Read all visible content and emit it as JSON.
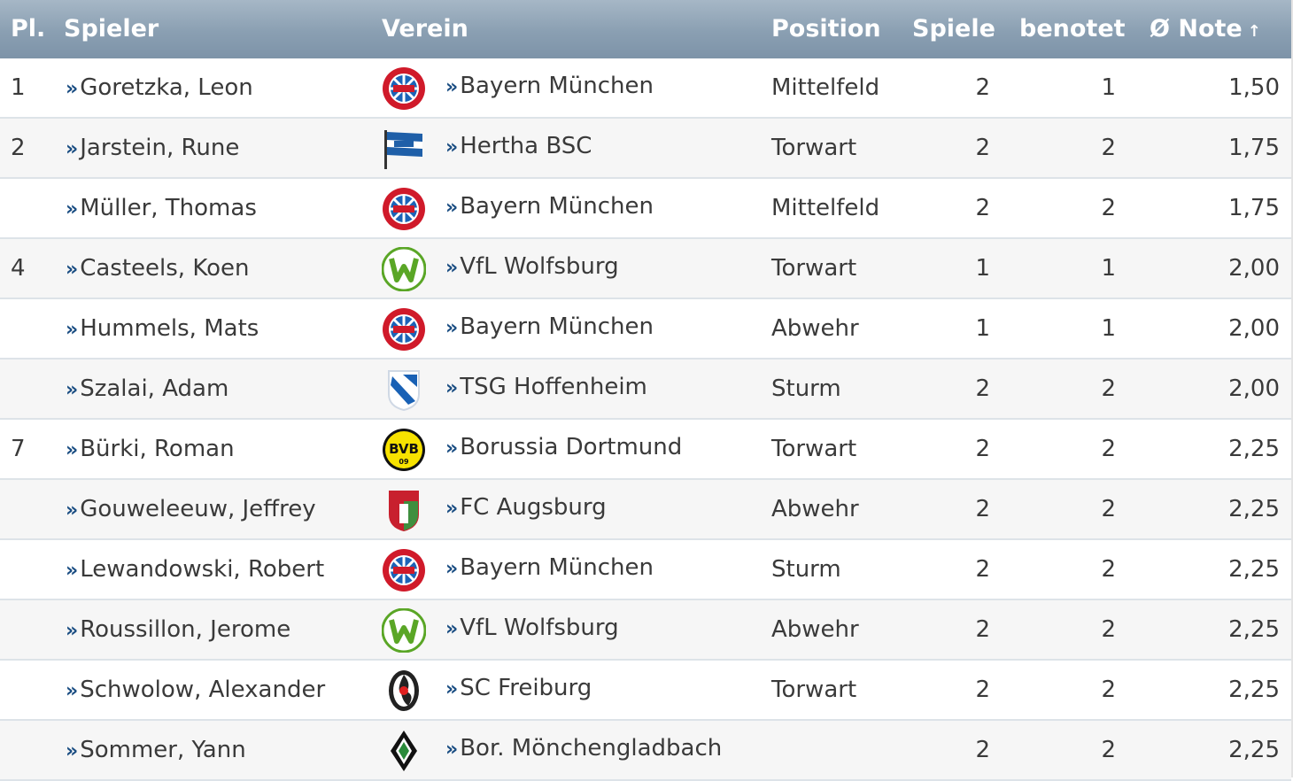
{
  "header": {
    "rank": "Pl.",
    "player": "Spieler",
    "club": "Verein",
    "position": "Position",
    "games": "Spiele",
    "rated": "benotet",
    "avg": "Ø Note",
    "sort_icon": "arrow-up-icon"
  },
  "chevron": "»",
  "colors": {
    "header_bg": "#8a9fb2",
    "link_chevron": "#1a4d82",
    "row_alt": "#f6f6f6"
  },
  "rows": [
    {
      "rank": "1",
      "player": "Goretzka, Leon",
      "club": "Bayern München",
      "logo": "bayern",
      "position": "Mittelfeld",
      "games": "2",
      "rated": "1",
      "avg": "1,50"
    },
    {
      "rank": "2",
      "player": "Jarstein, Rune",
      "club": "Hertha BSC",
      "logo": "hertha",
      "position": "Torwart",
      "games": "2",
      "rated": "2",
      "avg": "1,75"
    },
    {
      "rank": "",
      "player": "Müller, Thomas",
      "club": "Bayern München",
      "logo": "bayern",
      "position": "Mittelfeld",
      "games": "2",
      "rated": "2",
      "avg": "1,75"
    },
    {
      "rank": "4",
      "player": "Casteels, Koen",
      "club": "VfL Wolfsburg",
      "logo": "wolfsburg",
      "position": "Torwart",
      "games": "1",
      "rated": "1",
      "avg": "2,00"
    },
    {
      "rank": "",
      "player": "Hummels, Mats",
      "club": "Bayern München",
      "logo": "bayern",
      "position": "Abwehr",
      "games": "1",
      "rated": "1",
      "avg": "2,00"
    },
    {
      "rank": "",
      "player": "Szalai, Adam",
      "club": "TSG Hoffenheim",
      "logo": "hoffenheim",
      "position": "Sturm",
      "games": "2",
      "rated": "2",
      "avg": "2,00"
    },
    {
      "rank": "7",
      "player": "Bürki, Roman",
      "club": "Borussia Dortmund",
      "logo": "dortmund",
      "position": "Torwart",
      "games": "2",
      "rated": "2",
      "avg": "2,25"
    },
    {
      "rank": "",
      "player": "Gouweleeuw, Jeffrey",
      "club": "FC Augsburg",
      "logo": "augsburg",
      "position": "Abwehr",
      "games": "2",
      "rated": "2",
      "avg": "2,25"
    },
    {
      "rank": "",
      "player": "Lewandowski, Robert",
      "club": "Bayern München",
      "logo": "bayern",
      "position": "Sturm",
      "games": "2",
      "rated": "2",
      "avg": "2,25"
    },
    {
      "rank": "",
      "player": "Roussillon, Jerome",
      "club": "VfL Wolfsburg",
      "logo": "wolfsburg",
      "position": "Abwehr",
      "games": "2",
      "rated": "2",
      "avg": "2,25"
    },
    {
      "rank": "",
      "player": "Schwolow, Alexander",
      "club": "SC Freiburg",
      "logo": "freiburg",
      "position": "Torwart",
      "games": "2",
      "rated": "2",
      "avg": "2,25"
    },
    {
      "rank": "",
      "player": "Sommer, Yann",
      "club": "Bor. Mönchengladbach",
      "logo": "gladbach",
      "position": "",
      "games": "2",
      "rated": "2",
      "avg": "2,25"
    }
  ]
}
